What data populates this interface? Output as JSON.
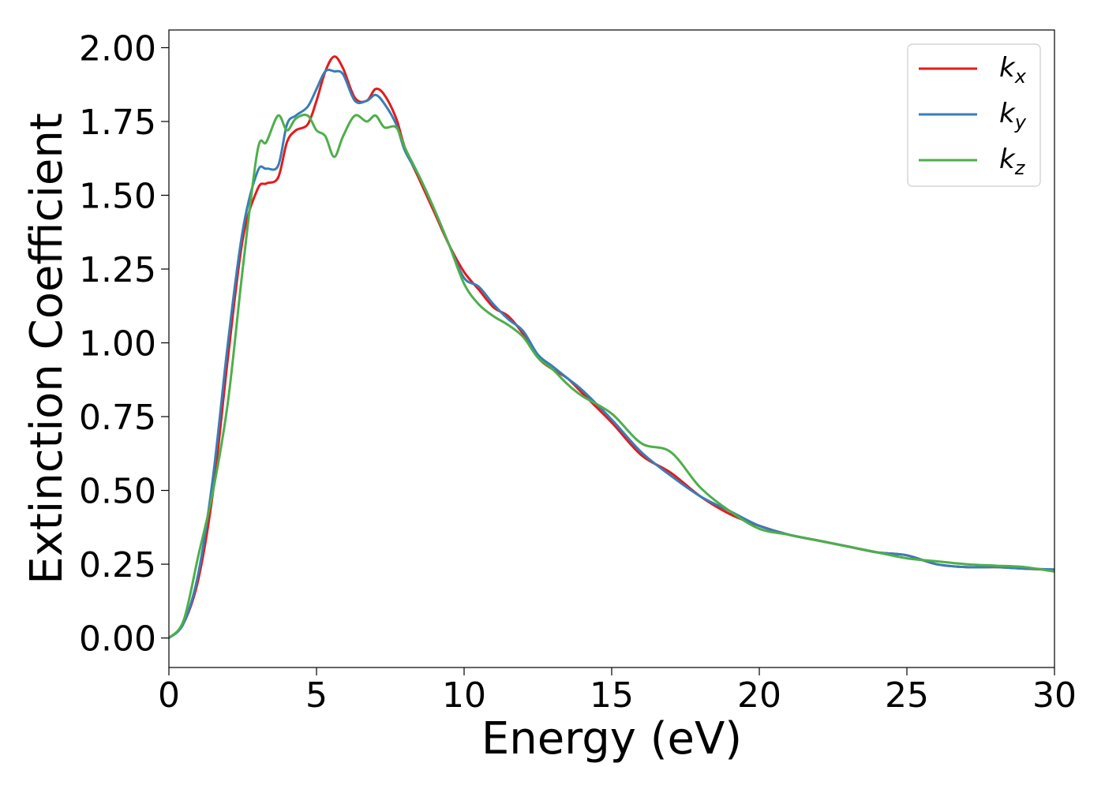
{
  "chart_data": {
    "type": "line",
    "xlabel": "Energy (eV)",
    "ylabel": "Extinction Coefficient",
    "xlim": [
      0,
      30
    ],
    "ylim": [
      -0.1,
      2.06
    ],
    "xticks": [
      0,
      5,
      10,
      15,
      20,
      25,
      30
    ],
    "yticks": [
      0.0,
      0.25,
      0.5,
      0.75,
      1.0,
      1.25,
      1.5,
      1.75,
      2.0
    ],
    "ytick_labels": [
      "0.00",
      "0.25",
      "0.50",
      "0.75",
      "1.00",
      "1.25",
      "1.50",
      "1.75",
      "2.00"
    ],
    "xtick_labels": [
      "0",
      "5",
      "10",
      "15",
      "20",
      "25",
      "30"
    ],
    "grid": false,
    "legend_position": "top-right",
    "series": [
      {
        "name": "k_x",
        "label_main": "k",
        "label_sub": "x",
        "color": "#e41a1c",
        "x": [
          0,
          0.5,
          1.0,
          1.5,
          2.0,
          2.5,
          3.0,
          3.3,
          3.7,
          4.0,
          4.3,
          4.7,
          5.0,
          5.3,
          5.6,
          5.9,
          6.3,
          6.7,
          7.0,
          7.3,
          7.7,
          8.0,
          8.5,
          9.0,
          9.5,
          10.0,
          10.5,
          11.0,
          11.5,
          12.0,
          12.5,
          13.0,
          13.5,
          14.0,
          15.0,
          16.0,
          17.0,
          18.0,
          19.0,
          20.0,
          21.0,
          22.0,
          23.0,
          24.0,
          25.0,
          26.0,
          27.0,
          28.0,
          29.0,
          30.0
        ],
        "y": [
          0.0,
          0.05,
          0.2,
          0.5,
          0.95,
          1.35,
          1.52,
          1.54,
          1.56,
          1.68,
          1.72,
          1.74,
          1.82,
          1.92,
          1.97,
          1.93,
          1.83,
          1.82,
          1.86,
          1.84,
          1.76,
          1.66,
          1.55,
          1.44,
          1.33,
          1.24,
          1.18,
          1.12,
          1.09,
          1.03,
          0.95,
          0.91,
          0.88,
          0.83,
          0.73,
          0.62,
          0.56,
          0.48,
          0.42,
          0.38,
          0.35,
          0.33,
          0.31,
          0.29,
          0.28,
          0.25,
          0.24,
          0.24,
          0.235,
          0.23
        ]
      },
      {
        "name": "k_y",
        "label_main": "k",
        "label_sub": "y",
        "color": "#377eb8",
        "x": [
          0,
          0.5,
          1.0,
          1.5,
          2.0,
          2.5,
          3.0,
          3.3,
          3.7,
          4.0,
          4.3,
          4.7,
          5.0,
          5.3,
          5.6,
          5.9,
          6.3,
          6.7,
          7.0,
          7.3,
          7.7,
          8.0,
          8.5,
          9.0,
          9.5,
          10.0,
          10.5,
          11.0,
          11.5,
          12.0,
          12.5,
          13.0,
          13.5,
          14.0,
          15.0,
          16.0,
          17.0,
          18.0,
          19.0,
          20.0,
          21.0,
          22.0,
          23.0,
          24.0,
          25.0,
          26.0,
          27.0,
          28.0,
          29.0,
          30.0
        ],
        "y": [
          0.0,
          0.05,
          0.22,
          0.55,
          1.0,
          1.38,
          1.58,
          1.59,
          1.6,
          1.74,
          1.77,
          1.8,
          1.86,
          1.92,
          1.92,
          1.91,
          1.82,
          1.82,
          1.84,
          1.81,
          1.74,
          1.65,
          1.56,
          1.45,
          1.33,
          1.22,
          1.19,
          1.13,
          1.08,
          1.04,
          0.96,
          0.92,
          0.88,
          0.84,
          0.74,
          0.63,
          0.55,
          0.48,
          0.43,
          0.38,
          0.35,
          0.33,
          0.31,
          0.29,
          0.28,
          0.25,
          0.24,
          0.24,
          0.235,
          0.232
        ]
      },
      {
        "name": "k_z",
        "label_main": "k",
        "label_sub": "z",
        "color": "#4daf4a",
        "x": [
          0,
          0.5,
          1.0,
          1.5,
          2.0,
          2.5,
          3.0,
          3.3,
          3.7,
          4.0,
          4.3,
          4.7,
          5.0,
          5.3,
          5.6,
          5.9,
          6.3,
          6.7,
          7.0,
          7.3,
          7.7,
          8.0,
          8.5,
          9.0,
          9.5,
          10.0,
          10.5,
          11.0,
          11.5,
          12.0,
          12.5,
          13.0,
          13.5,
          14.0,
          15.0,
          16.0,
          17.0,
          18.0,
          19.0,
          20.0,
          21.0,
          22.0,
          23.0,
          24.0,
          25.0,
          26.0,
          27.0,
          28.0,
          29.0,
          30.0
        ],
        "y": [
          0.0,
          0.06,
          0.28,
          0.5,
          0.8,
          1.25,
          1.65,
          1.68,
          1.77,
          1.72,
          1.76,
          1.77,
          1.72,
          1.7,
          1.63,
          1.7,
          1.77,
          1.75,
          1.77,
          1.73,
          1.73,
          1.66,
          1.56,
          1.45,
          1.33,
          1.2,
          1.13,
          1.09,
          1.06,
          1.02,
          0.95,
          0.91,
          0.86,
          0.82,
          0.76,
          0.66,
          0.63,
          0.51,
          0.43,
          0.37,
          0.35,
          0.33,
          0.31,
          0.29,
          0.27,
          0.26,
          0.25,
          0.245,
          0.24,
          0.225
        ]
      }
    ]
  }
}
